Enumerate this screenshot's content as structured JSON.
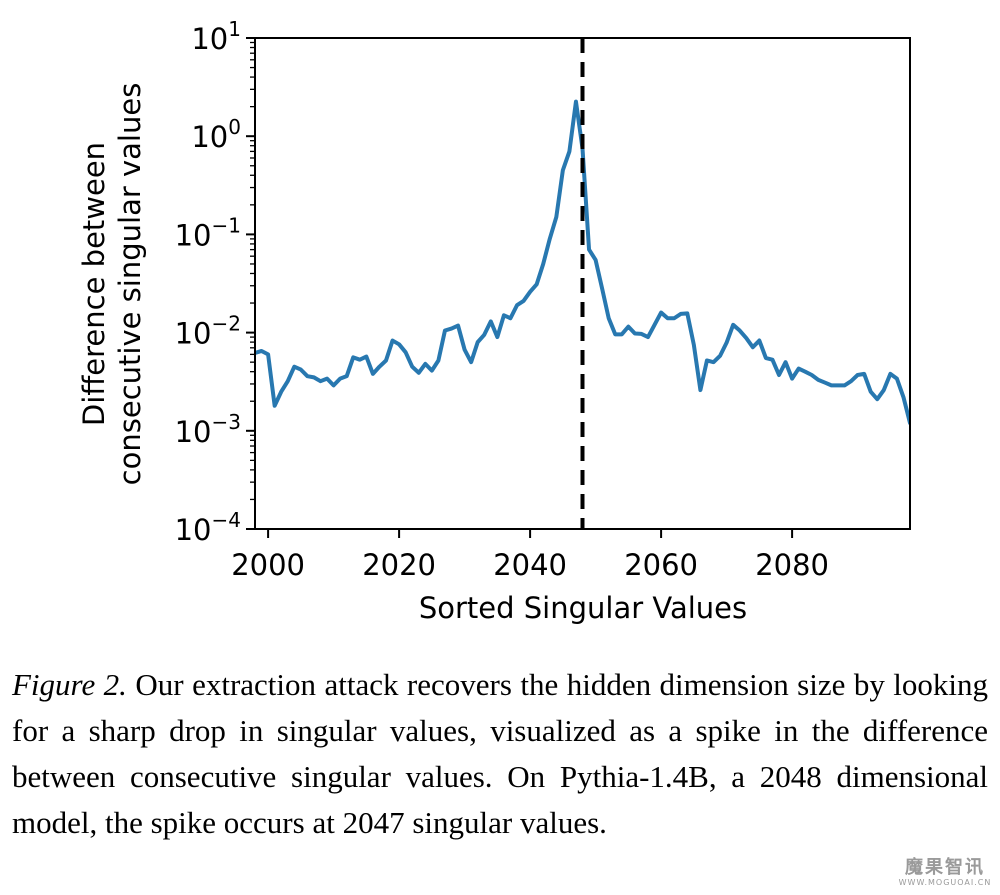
{
  "chart_data": {
    "type": "line",
    "xlabel": "Sorted Singular Values",
    "ylabel_lines": [
      "Difference between",
      "consecutive singular values"
    ],
    "xlim": [
      1998,
      2098
    ],
    "ylim": [
      0.0001,
      10
    ],
    "yscale": "log",
    "x_ticks": [
      2000,
      2020,
      2040,
      2060,
      2080
    ],
    "y_ticks": [
      {
        "value": 10,
        "base": "10",
        "exp": "1"
      },
      {
        "value": 1,
        "base": "10",
        "exp": "0"
      },
      {
        "value": 0.1,
        "base": "10",
        "exp": "−1"
      },
      {
        "value": 0.01,
        "base": "10",
        "exp": "−2"
      },
      {
        "value": 0.001,
        "base": "10",
        "exp": "−3"
      },
      {
        "value": 0.0001,
        "base": "10",
        "exp": "−4"
      }
    ],
    "vline": {
      "x": 2048,
      "style": "dashed",
      "color": "#000000"
    },
    "grid": false,
    "series": [
      {
        "color": "#2878b0",
        "x": [
          1998,
          1999,
          2000,
          2001,
          2002,
          2003,
          2004,
          2005,
          2006,
          2007,
          2008,
          2009,
          2010,
          2011,
          2012,
          2013,
          2014,
          2015,
          2016,
          2017,
          2018,
          2019,
          2020,
          2021,
          2022,
          2023,
          2024,
          2025,
          2026,
          2027,
          2028,
          2029,
          2030,
          2031,
          2032,
          2033,
          2034,
          2035,
          2036,
          2037,
          2038,
          2039,
          2040,
          2041,
          2042,
          2043,
          2044,
          2045,
          2046,
          2047,
          2048,
          2049,
          2050,
          2051,
          2052,
          2053,
          2054,
          2055,
          2056,
          2057,
          2058,
          2059,
          2060,
          2061,
          2062,
          2063,
          2064,
          2065,
          2066,
          2067,
          2068,
          2069,
          2070,
          2071,
          2072,
          2073,
          2074,
          2075,
          2076,
          2077,
          2078,
          2079,
          2080,
          2081,
          2082,
          2083,
          2084,
          2085,
          2086,
          2087,
          2088,
          2089,
          2090,
          2091,
          2092,
          2093,
          2094,
          2095,
          2096,
          2097,
          2098
        ],
        "y": [
          0.0062,
          0.0065,
          0.006,
          0.0018,
          0.0025,
          0.0032,
          0.0045,
          0.0042,
          0.0036,
          0.0035,
          0.0032,
          0.0034,
          0.0029,
          0.0034,
          0.0036,
          0.0056,
          0.0053,
          0.0057,
          0.0038,
          0.0045,
          0.0052,
          0.0083,
          0.0076,
          0.0063,
          0.0045,
          0.0039,
          0.0048,
          0.0041,
          0.0052,
          0.0105,
          0.011,
          0.0118,
          0.0067,
          0.005,
          0.008,
          0.0095,
          0.013,
          0.009,
          0.015,
          0.014,
          0.019,
          0.021,
          0.026,
          0.031,
          0.05,
          0.09,
          0.15,
          0.45,
          0.7,
          2.25,
          0.75,
          0.07,
          0.055,
          0.028,
          0.014,
          0.0096,
          0.0096,
          0.0115,
          0.0098,
          0.0097,
          0.009,
          0.012,
          0.016,
          0.014,
          0.014,
          0.0155,
          0.0157,
          0.0075,
          0.0026,
          0.0052,
          0.005,
          0.0058,
          0.0079,
          0.012,
          0.0105,
          0.0088,
          0.0071,
          0.0083,
          0.0055,
          0.0053,
          0.0037,
          0.005,
          0.0034,
          0.0043,
          0.004,
          0.0037,
          0.0033,
          0.0031,
          0.0029,
          0.0029,
          0.0029,
          0.0032,
          0.0037,
          0.0038,
          0.0025,
          0.0021,
          0.0026,
          0.0038,
          0.0034,
          0.0022,
          0.0012
        ]
      }
    ]
  },
  "caption": {
    "label": "Figure 2.",
    "text": "Our extraction attack recovers the hidden dimension size by looking for a sharp drop in singular values, visualized as a spike in the difference between consecutive singular values. On Pythia-1.4B, a 2048 dimensional model, the spike occurs at 2047 singular values."
  },
  "watermark": {
    "main": "魔果智讯",
    "sub": "WWW.MOGUOAI.CN"
  }
}
